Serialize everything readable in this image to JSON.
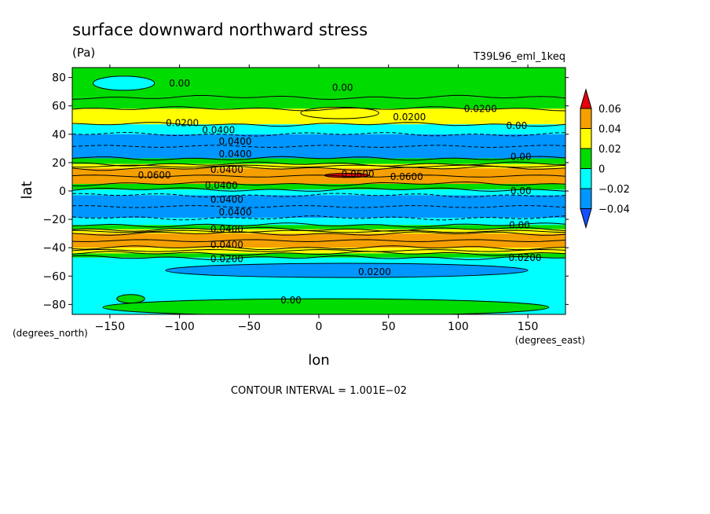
{
  "chart_data": {
    "type": "contour-filled",
    "title": "surface downward northward stress",
    "units": "(Pa)",
    "dataset_label": "T39L96_eml_1keq",
    "xlabel": "lon",
    "ylabel": "lat",
    "x_unit": "(degrees_east)",
    "y_unit": "(degrees_north)",
    "xlim": [
      -177,
      177
    ],
    "ylim": [
      -87,
      87
    ],
    "x_ticks": [
      {
        "value": -150,
        "label": "−150"
      },
      {
        "value": -100,
        "label": "−100"
      },
      {
        "value": -50,
        "label": "−50"
      },
      {
        "value": 0,
        "label": "0"
      },
      {
        "value": 50,
        "label": "50"
      },
      {
        "value": 100,
        "label": "100"
      },
      {
        "value": 150,
        "label": "150"
      }
    ],
    "y_ticks": [
      {
        "value": 80,
        "label": "80"
      },
      {
        "value": 60,
        "label": "60"
      },
      {
        "value": 40,
        "label": "40"
      },
      {
        "value": 20,
        "label": "20"
      },
      {
        "value": 0,
        "label": "0"
      },
      {
        "value": -20,
        "label": "−20"
      },
      {
        "value": -40,
        "label": "−40"
      },
      {
        "value": -60,
        "label": "−60"
      },
      {
        "value": -80,
        "label": "−80"
      }
    ],
    "colorbar": {
      "levels": [
        {
          "value": 0.06,
          "label": "0.06"
        },
        {
          "value": 0.04,
          "label": "0.04"
        },
        {
          "value": 0.02,
          "label": "0.02"
        },
        {
          "value": 0,
          "label": "0"
        },
        {
          "value": -0.02,
          "label": "−0.02"
        },
        {
          "value": -0.04,
          "label": "−0.04"
        }
      ],
      "colors": [
        "#e8000b",
        "#f5a000",
        "#ffff00",
        "#00dc00",
        "#00ffff",
        "#0096ff",
        "#1450ff"
      ]
    },
    "latitude_bands": [
      {
        "lat_from": 87,
        "lat_to": 66,
        "value": 0.0,
        "color": "#00dc00"
      },
      {
        "lat_from": 66,
        "lat_to": 58,
        "value": 0.01,
        "color": "#00dc00"
      },
      {
        "lat_from": 58,
        "lat_to": 47,
        "value": 0.025,
        "color": "#ffff00"
      },
      {
        "lat_from": 47,
        "lat_to": 40,
        "value": -0.01,
        "color": "#00ffff"
      },
      {
        "lat_from": 40,
        "lat_to": 23,
        "value": -0.035,
        "color": "#0096ff"
      },
      {
        "lat_from": 23,
        "lat_to": 19,
        "value": 0.01,
        "color": "#00dc00"
      },
      {
        "lat_from": 19,
        "lat_to": 16,
        "value": 0.03,
        "color": "#ffff00"
      },
      {
        "lat_from": 16,
        "lat_to": 5,
        "value": 0.05,
        "color": "#f5a000"
      },
      {
        "lat_from": 5,
        "lat_to": 1,
        "value": 0.01,
        "color": "#00dc00"
      },
      {
        "lat_from": 1,
        "lat_to": -3,
        "value": -0.01,
        "color": "#00ffff"
      },
      {
        "lat_from": -3,
        "lat_to": -19,
        "value": -0.045,
        "color": "#0096ff"
      },
      {
        "lat_from": -19,
        "lat_to": -24,
        "value": -0.01,
        "color": "#00ffff"
      },
      {
        "lat_from": -24,
        "lat_to": -27,
        "value": 0.01,
        "color": "#00dc00"
      },
      {
        "lat_from": -27,
        "lat_to": -30,
        "value": 0.03,
        "color": "#ffff00"
      },
      {
        "lat_from": -30,
        "lat_to": -40,
        "value": 0.045,
        "color": "#f5a000"
      },
      {
        "lat_from": -40,
        "lat_to": -44,
        "value": 0.03,
        "color": "#ffff00"
      },
      {
        "lat_from": -44,
        "lat_to": -47,
        "value": 0.01,
        "color": "#00dc00"
      },
      {
        "lat_from": -47,
        "lat_to": -87,
        "value": -0.015,
        "color": "#00ffff"
      }
    ],
    "patches": [
      {
        "lon": -140,
        "lat": 76,
        "rlon": 22,
        "rlat": 5,
        "value": -0.01,
        "color": "#00ffff"
      },
      {
        "lon": 15,
        "lat": 55,
        "rlon": 28,
        "rlat": 4,
        "value": 0.035,
        "color": "#ffff00"
      },
      {
        "lon": 20,
        "lat": 11,
        "rlon": 16,
        "rlat": 1.5,
        "value": 0.065,
        "color": "#e8000b"
      },
      {
        "lon": 20,
        "lat": -56,
        "rlon": 130,
        "rlat": 5,
        "value": -0.025,
        "color": "#0096ff"
      },
      {
        "lon": -135,
        "lat": -76,
        "rlon": 10,
        "rlat": 3,
        "value": 0.0,
        "color": "#00dc00"
      },
      {
        "lon": 5,
        "lat": -82,
        "rlon": 160,
        "rlat": 6,
        "value": 0.0,
        "color": "#00dc00"
      }
    ],
    "contour_labels": [
      {
        "lon": -100,
        "lat": 76,
        "text": "0.00"
      },
      {
        "lon": 17,
        "lat": 73,
        "text": "0.00"
      },
      {
        "lon": 116,
        "lat": 58,
        "text": "0.0200"
      },
      {
        "lon": -98,
        "lat": 48,
        "text": "0.0200"
      },
      {
        "lon": 65,
        "lat": 52,
        "text": "0.0200"
      },
      {
        "lon": 142,
        "lat": 46,
        "text": "0.00"
      },
      {
        "lon": -72,
        "lat": 43,
        "text": "0.0400"
      },
      {
        "lon": -60,
        "lat": 35,
        "text": "0.0400"
      },
      {
        "lon": -60,
        "lat": 26,
        "text": "0.0400"
      },
      {
        "lon": 145,
        "lat": 24,
        "text": "0.00"
      },
      {
        "lon": -66,
        "lat": 15,
        "text": "0.0400"
      },
      {
        "lon": -118,
        "lat": 11,
        "text": "0.0600"
      },
      {
        "lon": 28,
        "lat": 12,
        "text": "0.0600"
      },
      {
        "lon": 63,
        "lat": 10,
        "text": "0.0600"
      },
      {
        "lon": -70,
        "lat": 4,
        "text": "0.0400"
      },
      {
        "lon": 145,
        "lat": 0,
        "text": "0.00"
      },
      {
        "lon": -66,
        "lat": -6,
        "text": "0.0400"
      },
      {
        "lon": -60,
        "lat": -15,
        "text": "0.0400"
      },
      {
        "lon": -66,
        "lat": -27,
        "text": "0.0400"
      },
      {
        "lon": 144,
        "lat": -24,
        "text": "0.00"
      },
      {
        "lon": -66,
        "lat": -38,
        "text": "0.0400"
      },
      {
        "lon": -66,
        "lat": -48,
        "text": "0.0200"
      },
      {
        "lon": 148,
        "lat": -47,
        "text": "0.0200"
      },
      {
        "lon": 40,
        "lat": -57,
        "text": "0.0200"
      },
      {
        "lon": -20,
        "lat": -77,
        "text": "0.00"
      }
    ],
    "footer": "CONTOUR INTERVAL = 1.001E−02"
  }
}
